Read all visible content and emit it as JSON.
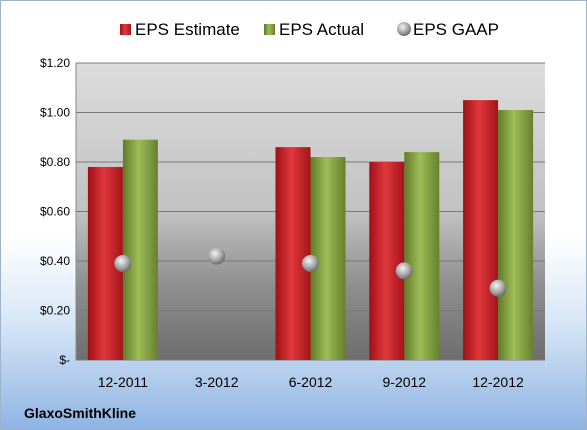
{
  "company": "GlaxoSmithKline",
  "chart_data": {
    "type": "bar",
    "categories": [
      "12-2011",
      "3-2012",
      "6-2012",
      "9-2012",
      "12-2012"
    ],
    "series": [
      {
        "name": "EPS Estimate",
        "type": "bar",
        "values": [
          0.78,
          null,
          0.86,
          0.8,
          1.05
        ],
        "color": "#c0191f"
      },
      {
        "name": "EPS Actual",
        "type": "bar",
        "values": [
          0.89,
          null,
          0.82,
          0.84,
          1.01
        ],
        "color": "#7f9c3a"
      },
      {
        "name": "EPS GAAP",
        "type": "scatter",
        "values": [
          0.39,
          0.42,
          0.39,
          0.36,
          0.29
        ],
        "color": "#a0a0a0"
      }
    ],
    "y_ticks": [
      {
        "value": 0,
        "label": "$-"
      },
      {
        "value": 0.2,
        "label": "$0.20"
      },
      {
        "value": 0.4,
        "label": "$0.40"
      },
      {
        "value": 0.6,
        "label": "$0.60"
      },
      {
        "value": 0.8,
        "label": "$0.80"
      },
      {
        "value": 1.0,
        "label": "$1.00"
      },
      {
        "value": 1.2,
        "label": "$1.20"
      }
    ],
    "ylim": [
      0,
      1.2
    ],
    "grid": true,
    "legend_position": "top"
  }
}
